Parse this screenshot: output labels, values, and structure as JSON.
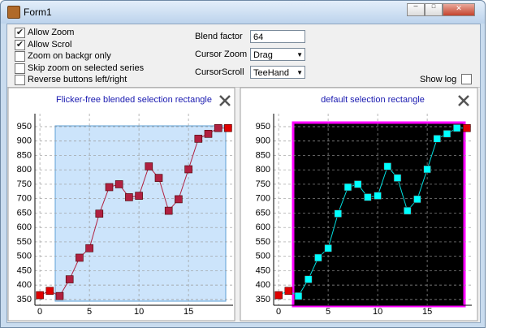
{
  "window": {
    "title": "Form1"
  },
  "controls": {
    "checkboxes": [
      {
        "label": "Allow Zoom",
        "checked": true
      },
      {
        "label": "Allow Scrol",
        "checked": true
      },
      {
        "label": "Zoom on backgr only",
        "checked": false
      },
      {
        "label": "Skip zoom on selected series",
        "checked": false
      },
      {
        "label": "Reverse buttons left/right",
        "checked": false
      }
    ],
    "blend_factor": {
      "label": "Blend factor",
      "value": 64
    },
    "cursor_zoom": {
      "label": "Cursor Zoom",
      "value": "Drag"
    },
    "cursor_scroll": {
      "label": "CursorScroll",
      "value": "TeeHand"
    },
    "show_log": {
      "label": "Show log",
      "checked": false
    }
  },
  "chart_data": [
    {
      "type": "line",
      "title": "Flicker-free blended selection rectangle",
      "x": [
        0,
        1,
        2,
        3,
        4,
        5,
        6,
        7,
        8,
        9,
        10,
        11,
        12,
        13,
        14,
        15,
        16,
        17,
        18,
        19
      ],
      "series": [
        {
          "color": "#e00000",
          "values": [
            365,
            380,
            362,
            420,
            495,
            528,
            648,
            740,
            750,
            705,
            710,
            812,
            772,
            658,
            698,
            802,
            908,
            925,
            945,
            945
          ]
        }
      ],
      "xlim": [
        -0.5,
        19.5
      ],
      "ylim": [
        330,
        995
      ],
      "xticks": [
        0,
        5,
        10,
        15
      ],
      "yticks": [
        350,
        400,
        450,
        500,
        550,
        600,
        650,
        700,
        750,
        800,
        850,
        900,
        950
      ],
      "grid": true
    },
    {
      "type": "line",
      "title": "default selection rectangle",
      "x": [
        0,
        1,
        2,
        3,
        4,
        5,
        6,
        7,
        8,
        9,
        10,
        11,
        12,
        13,
        14,
        15,
        16,
        17,
        18,
        19
      ],
      "series": [
        {
          "color": "#e00000",
          "values": [
            365,
            380,
            362,
            420,
            495,
            528,
            648,
            740,
            750,
            705,
            710,
            812,
            772,
            658,
            698,
            802,
            908,
            925,
            945,
            945
          ]
        }
      ],
      "xlim": [
        -0.5,
        19.5
      ],
      "ylim": [
        330,
        995
      ],
      "xticks": [
        0,
        5,
        10,
        15
      ],
      "yticks": [
        350,
        400,
        450,
        500,
        550,
        600,
        650,
        700,
        750,
        800,
        850,
        900,
        950
      ],
      "grid": true
    }
  ]
}
